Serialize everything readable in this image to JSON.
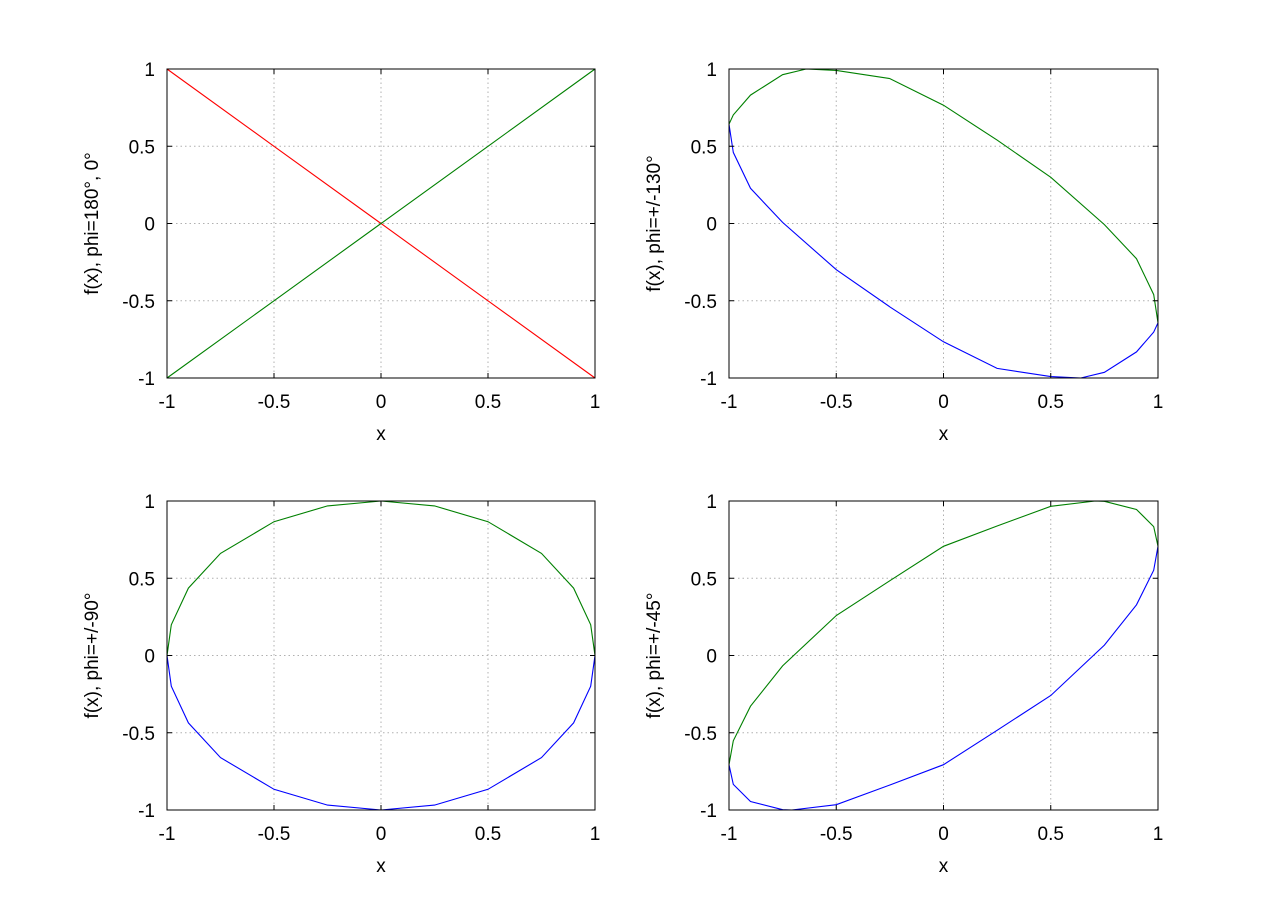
{
  "chart_data": [
    {
      "type": "line",
      "title": "",
      "xlabel": "x",
      "ylabel": "f(x), phi=180°, 0°",
      "xlim": [
        -1,
        1
      ],
      "ylim": [
        -1,
        1
      ],
      "xticks": [
        "-1",
        "-0.5",
        "0",
        "0.5",
        "1"
      ],
      "yticks": [
        "-1",
        "-0.5",
        "0",
        "0.5",
        "1"
      ],
      "grid": true,
      "series": [
        {
          "color": "#ff0000",
          "x": [
            -1,
            -0.5,
            0,
            0.5,
            1
          ],
          "y": [
            1,
            0.5,
            0,
            -0.5,
            -1
          ]
        },
        {
          "color": "#008000",
          "x": [
            -1,
            -0.5,
            0,
            0.5,
            1
          ],
          "y": [
            -1,
            -0.5,
            0,
            0.5,
            1
          ]
        }
      ]
    },
    {
      "type": "line",
      "title": "",
      "xlabel": "x",
      "ylabel": "f(x), phi=+/-130°",
      "xlim": [
        -1,
        1
      ],
      "ylim": [
        -1,
        1
      ],
      "xticks": [
        "-1",
        "-0.5",
        "0",
        "0.5",
        "1"
      ],
      "yticks": [
        "-1",
        "-0.5",
        "0",
        "0.5",
        "1"
      ],
      "grid": true,
      "series": [
        {
          "color": "#0000ff",
          "x": [
            -1,
            -0.98,
            -0.9,
            -0.75,
            -0.5,
            -0.25,
            0,
            0.25,
            0.5,
            0.64,
            0.75,
            0.9,
            0.98,
            1
          ],
          "y": [
            0.643,
            0.46,
            0.228,
            0.007,
            -0.299,
            -0.54,
            -0.766,
            -0.938,
            -0.991,
            -1.0,
            -0.963,
            -0.831,
            -0.703,
            -0.643
          ]
        },
        {
          "color": "#008000",
          "x": [
            -1,
            -0.98,
            -0.9,
            -0.75,
            -0.64,
            -0.5,
            -0.25,
            0,
            0.25,
            0.5,
            0.75,
            0.9,
            0.98,
            1
          ],
          "y": [
            0.643,
            0.703,
            0.831,
            0.963,
            1.0,
            0.991,
            0.938,
            0.766,
            0.54,
            0.299,
            -0.007,
            -0.228,
            -0.46,
            -0.643
          ]
        }
      ]
    },
    {
      "type": "line",
      "title": "",
      "xlabel": "x",
      "ylabel": "f(x), phi=+/-90°",
      "xlim": [
        -1,
        1
      ],
      "ylim": [
        -1,
        1
      ],
      "xticks": [
        "-1",
        "-0.5",
        "0",
        "0.5",
        "1"
      ],
      "yticks": [
        "-1",
        "-0.5",
        "0",
        "0.5",
        "1"
      ],
      "grid": true,
      "series": [
        {
          "color": "#0000ff",
          "x": [
            -1,
            -0.98,
            -0.9,
            -0.75,
            -0.5,
            -0.25,
            0,
            0.25,
            0.5,
            0.75,
            0.9,
            0.98,
            1
          ],
          "y": [
            0,
            -0.199,
            -0.436,
            -0.661,
            -0.866,
            -0.968,
            -1.0,
            -0.968,
            -0.866,
            -0.661,
            -0.436,
            -0.199,
            0
          ]
        },
        {
          "color": "#008000",
          "x": [
            -1,
            -0.98,
            -0.9,
            -0.75,
            -0.5,
            -0.25,
            0,
            0.25,
            0.5,
            0.75,
            0.9,
            0.98,
            1
          ],
          "y": [
            0,
            0.199,
            0.436,
            0.661,
            0.866,
            0.968,
            1.0,
            0.968,
            0.866,
            0.661,
            0.436,
            0.199,
            0
          ]
        }
      ]
    },
    {
      "type": "line",
      "title": "",
      "xlabel": "x",
      "ylabel": "f(x), phi=+/-45°",
      "xlim": [
        -1,
        1
      ],
      "ylim": [
        -1,
        1
      ],
      "xticks": [
        "-1",
        "-0.5",
        "0",
        "0.5",
        "1"
      ],
      "yticks": [
        "-1",
        "-0.5",
        "0",
        "0.5",
        "1"
      ],
      "grid": true,
      "series": [
        {
          "color": "#0000ff",
          "x": [
            -1,
            -0.98,
            -0.9,
            -0.75,
            -0.707,
            -0.5,
            -0.25,
            0,
            0.25,
            0.5,
            0.75,
            0.9,
            0.98,
            1
          ],
          "y": [
            -0.707,
            -0.834,
            -0.945,
            -0.998,
            -1.0,
            -0.966,
            -0.838,
            -0.707,
            -0.484,
            -0.259,
            0.067,
            0.328,
            0.552,
            0.707
          ]
        },
        {
          "color": "#008000",
          "x": [
            -1,
            -0.98,
            -0.9,
            -0.75,
            -0.5,
            -0.25,
            0,
            0.25,
            0.5,
            0.707,
            0.75,
            0.9,
            0.98,
            1
          ],
          "y": [
            -0.707,
            -0.552,
            -0.328,
            -0.067,
            0.259,
            0.484,
            0.707,
            0.838,
            0.966,
            1.0,
            0.998,
            0.945,
            0.834,
            0.707
          ]
        }
      ]
    }
  ]
}
